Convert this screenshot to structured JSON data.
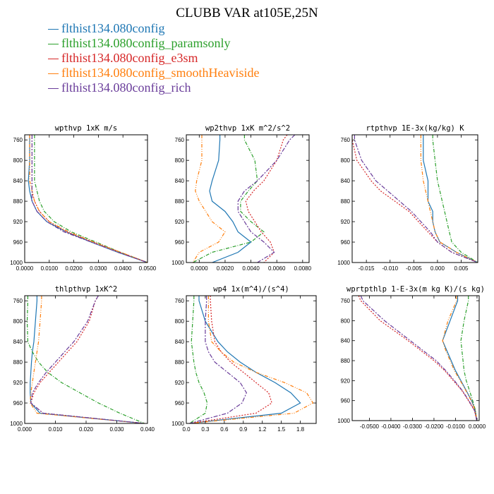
{
  "figure": {
    "title": "CLUBB VAR at105E,25N"
  },
  "legend": [
    {
      "label": "flthist134.080config",
      "color": "#1f77b4"
    },
    {
      "label": "flthist134.080config_paramsonly",
      "color": "#2ca02c"
    },
    {
      "label": "flthist134.080config_e3sm",
      "color": "#d62728"
    },
    {
      "label": "flthist134.080config_smoothHeaviside",
      "color": "#ff7f0e"
    },
    {
      "label": "flthist134.080config_rich",
      "color": "#6a3d9a"
    }
  ],
  "chart_data": [
    {
      "type": "line",
      "title": "wpthvp  1xK m/s",
      "xlim": [
        0,
        0.05
      ],
      "ylim": [
        1000,
        750
      ],
      "xticks": [
        0,
        0.01,
        0.02,
        0.03,
        0.04,
        0.05
      ],
      "xtick_labels": [
        "0.0000",
        "0.0100",
        "0.0200",
        "0.0300",
        "0.0400",
        "0.0500"
      ],
      "yticks": [
        760,
        800,
        840,
        880,
        920,
        960,
        1000
      ],
      "y": [
        750,
        760,
        800,
        840,
        860,
        880,
        900,
        920,
        940,
        960,
        980,
        1000
      ],
      "series": [
        {
          "name": "flthist134.080config",
          "x": [
            0.002,
            0.002,
            0.002,
            0.0015,
            0.002,
            0.003,
            0.005,
            0.009,
            0.017,
            0.027,
            0.038,
            0.05
          ]
        },
        {
          "name": "flthist134.080config_paramsonly",
          "x": [
            0.004,
            0.004,
            0.004,
            0.004,
            0.005,
            0.006,
            0.008,
            0.012,
            0.019,
            0.029,
            0.039,
            0.05
          ]
        },
        {
          "name": "flthist134.080config_e3sm",
          "x": [
            0.003,
            0.003,
            0.003,
            0.003,
            0.003,
            0.004,
            0.006,
            0.01,
            0.017,
            0.028,
            0.039,
            0.05
          ]
        },
        {
          "name": "flthist134.080config_smoothHeaviside",
          "x": [
            0.002,
            0.002,
            0.002,
            0.002,
            0.003,
            0.004,
            0.006,
            0.01,
            0.018,
            0.028,
            0.039,
            0.05
          ]
        },
        {
          "name": "flthist134.080config_rich",
          "x": [
            0.003,
            0.003,
            0.003,
            0.003,
            0.003,
            0.003,
            0.005,
            0.009,
            0.016,
            0.027,
            0.038,
            0.05
          ]
        }
      ]
    },
    {
      "type": "line",
      "title": "wp2thvp  1xK m^2/s^2",
      "xlim": [
        -0.001,
        0.0085
      ],
      "ylim": [
        1000,
        750
      ],
      "xticks": [
        0,
        0.002,
        0.004,
        0.006,
        0.008
      ],
      "xtick_labels": [
        "0.0000",
        "0.0020",
        "0.0040",
        "0.0060",
        "0.0080"
      ],
      "yticks": [
        760,
        800,
        840,
        880,
        920,
        960,
        1000
      ],
      "y": [
        750,
        760,
        800,
        840,
        860,
        880,
        900,
        920,
        940,
        960,
        980,
        1000
      ],
      "series": [
        {
          "name": "flthist134.080config",
          "x": [
            0.0016,
            0.0016,
            0.0015,
            0.001,
            0.0008,
            0.001,
            0.002,
            0.0026,
            0.003,
            0.004,
            0.003,
            0.001
          ]
        },
        {
          "name": "flthist134.080config_paramsonly",
          "x": [
            0.0035,
            0.0035,
            0.0043,
            0.0045,
            0.0038,
            0.0032,
            0.0032,
            0.004,
            0.005,
            0.004,
            0.001,
            -0.0005
          ]
        },
        {
          "name": "flthist134.080config_e3sm",
          "x": [
            0.0068,
            0.0065,
            0.006,
            0.005,
            0.0042,
            0.0036,
            0.0038,
            0.0043,
            0.0048,
            0.0055,
            0.0058,
            0.005
          ]
        },
        {
          "name": "flthist134.080config_smoothHeaviside",
          "x": [
            0.0002,
            0.0002,
            0.0002,
            -0.0002,
            -0.0003,
            0.0,
            0.0005,
            0.001,
            0.002,
            0.0015,
            0.0,
            -0.0005
          ]
        },
        {
          "name": "flthist134.080config_rich",
          "x": [
            0.0074,
            0.007,
            0.006,
            0.0045,
            0.0035,
            0.003,
            0.003,
            0.0035,
            0.004,
            0.005,
            0.0058,
            0.0045
          ]
        }
      ]
    },
    {
      "type": "line",
      "title": "rtpthvp  1E-3x(kg/kg) K",
      "xlim": [
        -0.018,
        0.0085
      ],
      "ylim": [
        1000,
        750
      ],
      "xticks": [
        -0.015,
        -0.01,
        -0.005,
        0,
        0.005
      ],
      "xtick_labels": [
        "-0.015",
        "-0.010",
        "-0.005",
        "0.000",
        "0.005"
      ],
      "yticks": [
        760,
        800,
        840,
        880,
        920,
        960,
        1000
      ],
      "y": [
        750,
        760,
        800,
        840,
        860,
        880,
        900,
        920,
        940,
        960,
        980,
        1000
      ],
      "series": [
        {
          "name": "flthist134.080config",
          "x": [
            -0.003,
            -0.003,
            -0.003,
            -0.002,
            -0.002,
            -0.002,
            -0.001,
            -0.001,
            -0.0005,
            0.0005,
            0.004,
            0.0085
          ]
        },
        {
          "name": "flthist134.080config_paramsonly",
          "x": [
            -0.001,
            -0.001,
            -0.0005,
            0.0,
            0.0005,
            0.001,
            0.0015,
            0.002,
            0.0025,
            0.003,
            0.005,
            0.0085
          ]
        },
        {
          "name": "flthist134.080config_e3sm",
          "x": [
            -0.018,
            -0.018,
            -0.017,
            -0.014,
            -0.012,
            -0.009,
            -0.006,
            -0.004,
            -0.002,
            0.0,
            0.003,
            0.0085
          ]
        },
        {
          "name": "flthist134.080config_smoothHeaviside",
          "x": [
            -0.0035,
            -0.0035,
            -0.0035,
            -0.003,
            -0.0025,
            -0.002,
            -0.0015,
            -0.001,
            -0.0005,
            0.0005,
            0.004,
            0.0085
          ]
        },
        {
          "name": "flthist134.080config_rich",
          "x": [
            -0.0175,
            -0.0175,
            -0.016,
            -0.013,
            -0.0105,
            -0.008,
            -0.0055,
            -0.0035,
            -0.0015,
            0.0,
            0.003,
            0.0085
          ]
        }
      ]
    },
    {
      "type": "line",
      "title": "thlpthvp  1xK^2",
      "xlim": [
        0,
        0.04
      ],
      "ylim": [
        1000,
        750
      ],
      "xticks": [
        0,
        0.01,
        0.02,
        0.03,
        0.04
      ],
      "xtick_labels": [
        "0.000",
        "0.010",
        "0.020",
        "0.030",
        "0.040"
      ],
      "yticks": [
        760,
        800,
        840,
        880,
        920,
        960,
        1000
      ],
      "y": [
        750,
        760,
        800,
        840,
        860,
        880,
        900,
        920,
        940,
        960,
        980,
        1000
      ],
      "series": [
        {
          "name": "flthist134.080config",
          "x": [
            0.004,
            0.004,
            0.0035,
            0.003,
            0.0025,
            0.0022,
            0.002,
            0.0018,
            0.0018,
            0.002,
            0.005,
            0.039
          ]
        },
        {
          "name": "flthist134.080config_paramsonly",
          "x": [
            0.001,
            0.001,
            0.0008,
            0.001,
            0.0025,
            0.0045,
            0.0075,
            0.012,
            0.018,
            0.024,
            0.031,
            0.039
          ]
        },
        {
          "name": "flthist134.080config_e3sm",
          "x": [
            0.024,
            0.023,
            0.021,
            0.017,
            0.014,
            0.011,
            0.008,
            0.005,
            0.003,
            0.002,
            0.006,
            0.039
          ]
        },
        {
          "name": "flthist134.080config_smoothHeaviside",
          "x": [
            0.0055,
            0.0055,
            0.005,
            0.0045,
            0.004,
            0.0035,
            0.003,
            0.0025,
            0.002,
            0.0018,
            0.004,
            0.039
          ]
        },
        {
          "name": "flthist134.080config_rich",
          "x": [
            0.024,
            0.023,
            0.0205,
            0.016,
            0.013,
            0.01,
            0.007,
            0.0045,
            0.0025,
            0.002,
            0.006,
            0.039
          ]
        }
      ]
    },
    {
      "type": "line",
      "title": "wp4  1x(m^4)/(s^4)",
      "xlim": [
        0,
        2.05
      ],
      "ylim": [
        1000,
        750
      ],
      "xticks": [
        0,
        0.3,
        0.6,
        0.9,
        1.2,
        1.5,
        1.8
      ],
      "xtick_labels": [
        "0.0",
        "0.3",
        "0.6",
        "0.9",
        "1.2",
        "1.5",
        "1.8"
      ],
      "yticks": [
        760,
        800,
        840,
        880,
        920,
        960,
        1000
      ],
      "y": [
        750,
        760,
        800,
        840,
        860,
        880,
        900,
        920,
        940,
        960,
        980,
        1000
      ],
      "series": [
        {
          "name": "flthist134.080config",
          "x": [
            0.2,
            0.2,
            0.3,
            0.5,
            0.65,
            0.85,
            1.1,
            1.4,
            1.65,
            1.8,
            1.5,
            0.05
          ]
        },
        {
          "name": "flthist134.080config_paramsonly",
          "x": [
            0.12,
            0.12,
            0.1,
            0.08,
            0.1,
            0.12,
            0.15,
            0.2,
            0.28,
            0.33,
            0.3,
            0.05
          ]
        },
        {
          "name": "flthist134.080config_e3sm",
          "x": [
            0.38,
            0.38,
            0.4,
            0.45,
            0.55,
            0.7,
            0.9,
            1.1,
            1.3,
            1.35,
            1.1,
            0.05
          ]
        },
        {
          "name": "flthist134.080config_smoothHeaviside",
          "x": [
            0.35,
            0.35,
            0.35,
            0.4,
            0.55,
            0.75,
            1.1,
            1.55,
            1.9,
            2.0,
            1.7,
            0.05
          ]
        },
        {
          "name": "flthist134.080config_rich",
          "x": [
            0.32,
            0.32,
            0.3,
            0.3,
            0.35,
            0.45,
            0.65,
            0.85,
            0.95,
            0.88,
            0.65,
            0.05
          ]
        }
      ]
    },
    {
      "type": "line",
      "title": "wprtpthlp  1-E-3x(m kg K)/(s kg)",
      "xlim": [
        -0.058,
        0.001
      ],
      "ylim": [
        1000,
        750
      ],
      "xticks": [
        -0.05,
        -0.04,
        -0.03,
        -0.02,
        -0.01,
        0
      ],
      "xtick_labels": [
        "-0.0500",
        "-0.0400",
        "-0.0300",
        "-0.0200",
        "-0.0100",
        "0.0000"
      ],
      "yticks": [
        760,
        800,
        840,
        880,
        920,
        960,
        1000
      ],
      "y": [
        750,
        760,
        800,
        840,
        860,
        880,
        900,
        920,
        940,
        960,
        980,
        1000
      ],
      "series": [
        {
          "name": "flthist134.080config",
          "x": [
            -0.009,
            -0.009,
            -0.0125,
            -0.016,
            -0.014,
            -0.012,
            -0.01,
            -0.0075,
            -0.005,
            -0.0025,
            -0.0008,
            -0.0001
          ]
        },
        {
          "name": "flthist134.080config_paramsonly",
          "x": [
            -0.004,
            -0.004,
            -0.006,
            -0.0075,
            -0.007,
            -0.0065,
            -0.006,
            -0.005,
            -0.0035,
            -0.002,
            -0.0007,
            -0.0001
          ]
        },
        {
          "name": "flthist134.080config_e3sm",
          "x": [
            -0.055,
            -0.054,
            -0.045,
            -0.032,
            -0.026,
            -0.02,
            -0.015,
            -0.011,
            -0.007,
            -0.004,
            -0.0012,
            -0.0001
          ]
        },
        {
          "name": "flthist134.080config_smoothHeaviside",
          "x": [
            -0.0095,
            -0.0095,
            -0.0135,
            -0.016,
            -0.0145,
            -0.0125,
            -0.0105,
            -0.0078,
            -0.0052,
            -0.0027,
            -0.0008,
            -0.0001
          ]
        },
        {
          "name": "flthist134.080config_rich",
          "x": [
            -0.054,
            -0.053,
            -0.043,
            -0.031,
            -0.025,
            -0.019,
            -0.0145,
            -0.0105,
            -0.0068,
            -0.0038,
            -0.0011,
            -0.0001
          ]
        }
      ]
    }
  ]
}
